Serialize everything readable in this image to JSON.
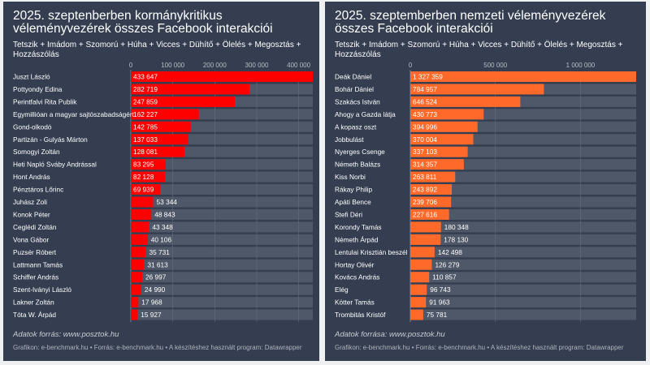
{
  "chart_data": [
    {
      "type": "bar",
      "orientation": "horizontal",
      "title": "2025. szeptenberben kormánykritikus véleményvezérek összes Facebook interakciói",
      "subtitle": "Tetszik + Imádom + Szomorú + Húha + Vicces + Dühítő + Ölelés + Megosztás + Hozzászólás",
      "bar_color": "#ff0000",
      "xlim": [
        0,
        433647
      ],
      "ticks": [
        0,
        100000,
        200000,
        300000,
        400000
      ],
      "tick_labels": [
        "0",
        "100 000",
        "200 000",
        "300 000",
        "400 000"
      ],
      "categories": [
        "Juszt László",
        "Pottyondy Edina",
        "Perintfalvi Rita Publik",
        "Egymillióan a magyar sajtószabadságért",
        "Gond-olkodó",
        "Partizán - Gulyás Márton",
        "Somogyi Zoltán",
        "Heti Napló Sváby Andrással",
        "Hont András",
        "Pénztáros Lőrinc",
        "Juhász Zoli",
        "Konok Péter",
        "Ceglédi Zoltán",
        "Vona Gábor",
        "Puzsér Róbert",
        "Lattmann Tamás",
        "Schiffer András",
        "Szent-Iványi László",
        "Lakner Zoltán",
        "Tóta W. Árpád"
      ],
      "values": [
        433647,
        282719,
        247859,
        162227,
        142785,
        137033,
        128081,
        83295,
        82128,
        69939,
        53344,
        48843,
        43348,
        40106,
        35731,
        31613,
        26997,
        24990,
        17968,
        15927
      ],
      "value_labels": [
        "433 647",
        "282 719",
        "247 859",
        "162 227",
        "142 785",
        "137 033",
        "128 081",
        "83 295",
        "82 128",
        "69 939",
        "53 344",
        "48 843",
        "43 348",
        "40 106",
        "35 731",
        "31 613",
        "26 997",
        "24 990",
        "17 968",
        "15 927"
      ],
      "source": "Adatok forrás: www.posztok.hu",
      "credits": "Grafikon: e-benchmark.hu • Forrás: e-benchmark.hu • A készítéshez használt program: Datawrapper"
    },
    {
      "type": "bar",
      "orientation": "horizontal",
      "title": "2025. szeptemberben nemzeti véleményvezérek összes Facebook interakciói",
      "subtitle": "Tetszik + Imádom + Szomorú + Húha + Vicces + Dühítő + Ölelés + Megosztás + Hozzászólás",
      "bar_color": "#ff6a2b",
      "xlim": [
        0,
        1327359
      ],
      "ticks": [
        0,
        500000,
        1000000
      ],
      "tick_labels": [
        "0",
        "500 000",
        "1 000 000"
      ],
      "categories": [
        "Deák Dániel",
        "Bohár Dániel",
        "Szakács István",
        "Ahogy a Gazda látja",
        "A kopasz oszt",
        "Jobbulást",
        "Nyerges Csenge",
        "Németh Balázs",
        "Kiss Norbi",
        "Rákay Philip",
        "Apáti Bence",
        "Stefi Déri",
        "Korondy Tamás",
        "Németh Árpád",
        "Lentulai Krisztián beszél",
        "Hortay Olivér",
        "Kovács András",
        "Elég",
        "Kötter Tamás",
        "Trombitás Kristóf"
      ],
      "values": [
        1327359,
        784957,
        646524,
        430773,
        394996,
        370004,
        337103,
        314357,
        263811,
        243892,
        239706,
        227616,
        180348,
        178130,
        142498,
        126279,
        110857,
        96743,
        91963,
        75781
      ],
      "value_labels": [
        "1 327 359",
        "784 957",
        "646 524",
        "430 773",
        "394 996",
        "370 004",
        "337 103",
        "314 357",
        "263 811",
        "243 892",
        "239 706",
        "227 616",
        "180 348",
        "178 130",
        "142 498",
        "126 279",
        "110 857",
        "96 743",
        "91 963",
        "75 781"
      ],
      "source": "Adatok forrása: www.posztok.hu",
      "credits": "Grafikon: e-benchmark.hu • Forrás: e-benchmark.hu • A készítéshez használt program: Datawrapper"
    }
  ]
}
